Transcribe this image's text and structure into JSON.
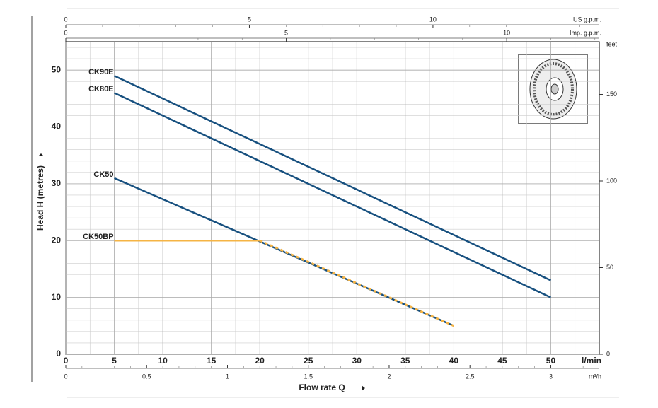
{
  "chart_data": {
    "type": "line",
    "xlabel": "Flow rate Q",
    "ylabel": "Head H (metres)",
    "xunit": "l/min",
    "xlim": [
      0,
      55
    ],
    "xticks": [
      0,
      5,
      10,
      15,
      20,
      25,
      30,
      35,
      40,
      45,
      50
    ],
    "ylim": [
      0,
      55
    ],
    "yticks": [
      0,
      10,
      20,
      30,
      40,
      50
    ],
    "grid": true,
    "y2label": "feet",
    "y2lim": [
      0,
      180.4
    ],
    "y2ticks": [
      0,
      50,
      100,
      150
    ],
    "secondary_x_axes": [
      {
        "label": "US g.p.m.",
        "xlim": [
          0,
          14.53
        ],
        "xticks": [
          0,
          5,
          10
        ]
      },
      {
        "label": "Imp. g.p.m.",
        "xlim": [
          0,
          12.1
        ],
        "xticks": [
          0,
          5,
          10
        ]
      },
      {
        "label": "m³/h",
        "xlim": [
          0,
          3.3
        ],
        "xticks": [
          0,
          0.5,
          1,
          1.5,
          2,
          2.5,
          3
        ]
      }
    ],
    "series": [
      {
        "name": "CK90E",
        "color": "#17507f",
        "x": [
          5,
          50
        ],
        "values": [
          49,
          13
        ]
      },
      {
        "name": "CK80E",
        "color": "#17507f",
        "x": [
          5,
          50
        ],
        "values": [
          46,
          10
        ]
      },
      {
        "name": "CK50",
        "color": "#17507f",
        "x": [
          5,
          40
        ],
        "values": [
          31,
          5
        ]
      },
      {
        "name": "CK50BP",
        "color": "#f5b445",
        "x": [
          5,
          20,
          40
        ],
        "values": [
          20,
          20,
          5
        ]
      }
    ]
  }
}
